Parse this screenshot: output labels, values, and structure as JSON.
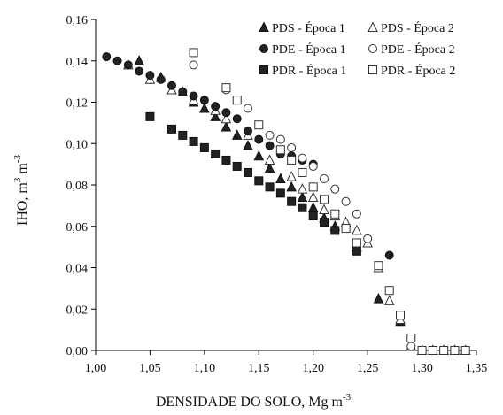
{
  "chart_data": {
    "type": "scatter",
    "title": "",
    "xlabel": "DENSIDADE DO SOLO, Mg m",
    "xlabel_sup": "-3",
    "ylabel": "IHO, m",
    "ylabel_sup1": "3",
    "ylabel_mid": " m",
    "ylabel_sup2": "-3",
    "xlim": [
      1.0,
      1.35
    ],
    "ylim": [
      0.0,
      0.16
    ],
    "xticks": [
      "1,00",
      "1,05",
      "1,10",
      "1,15",
      "1,20",
      "1,25",
      "1,30",
      "1,35"
    ],
    "yticks": [
      "0,00",
      "0,02",
      "0,04",
      "0,06",
      "0,08",
      "0,10",
      "0,12",
      "0,14",
      "0,16"
    ],
    "grid": false,
    "legend_position": "top-right",
    "series": [
      {
        "name": "PDS - Época 1",
        "marker": "triangle",
        "filled": true,
        "points": [
          [
            1.04,
            0.14
          ],
          [
            1.06,
            0.132
          ],
          [
            1.08,
            0.125
          ],
          [
            1.09,
            0.12
          ],
          [
            1.1,
            0.117
          ],
          [
            1.11,
            0.113
          ],
          [
            1.12,
            0.108
          ],
          [
            1.13,
            0.104
          ],
          [
            1.14,
            0.099
          ],
          [
            1.15,
            0.094
          ],
          [
            1.16,
            0.088
          ],
          [
            1.17,
            0.083
          ],
          [
            1.18,
            0.079
          ],
          [
            1.19,
            0.074
          ],
          [
            1.2,
            0.069
          ],
          [
            1.21,
            0.064
          ],
          [
            1.22,
            0.06
          ],
          [
            1.24,
            0.05
          ],
          [
            1.26,
            0.025
          ],
          [
            1.28,
            0.014
          ],
          [
            1.29,
            0.002
          ],
          [
            1.3,
            0.0
          ],
          [
            1.31,
            0.0
          ],
          [
            1.32,
            0.0
          ],
          [
            1.33,
            0.0
          ],
          [
            1.34,
            0.0
          ]
        ]
      },
      {
        "name": "PDS - Época 2",
        "marker": "triangle",
        "filled": false,
        "points": [
          [
            1.03,
            0.138
          ],
          [
            1.05,
            0.131
          ],
          [
            1.07,
            0.126
          ],
          [
            1.09,
            0.121
          ],
          [
            1.11,
            0.116
          ],
          [
            1.12,
            0.112
          ],
          [
            1.14,
            0.104
          ],
          [
            1.16,
            0.092
          ],
          [
            1.18,
            0.084
          ],
          [
            1.19,
            0.078
          ],
          [
            1.2,
            0.074
          ],
          [
            1.21,
            0.068
          ],
          [
            1.22,
            0.065
          ],
          [
            1.23,
            0.062
          ],
          [
            1.24,
            0.058
          ],
          [
            1.25,
            0.052
          ],
          [
            1.26,
            0.04
          ],
          [
            1.27,
            0.024
          ],
          [
            1.28,
            0.015
          ],
          [
            1.29,
            0.002
          ],
          [
            1.3,
            0.0
          ],
          [
            1.31,
            0.0
          ],
          [
            1.32,
            0.0
          ],
          [
            1.33,
            0.0
          ],
          [
            1.34,
            0.0
          ]
        ]
      },
      {
        "name": "PDE - Época 1",
        "marker": "circle",
        "filled": true,
        "points": [
          [
            1.01,
            0.142
          ],
          [
            1.02,
            0.14
          ],
          [
            1.03,
            0.138
          ],
          [
            1.04,
            0.135
          ],
          [
            1.05,
            0.133
          ],
          [
            1.06,
            0.131
          ],
          [
            1.07,
            0.128
          ],
          [
            1.08,
            0.125
          ],
          [
            1.09,
            0.123
          ],
          [
            1.1,
            0.121
          ],
          [
            1.11,
            0.118
          ],
          [
            1.12,
            0.115
          ],
          [
            1.13,
            0.112
          ],
          [
            1.14,
            0.106
          ],
          [
            1.15,
            0.102
          ],
          [
            1.16,
            0.099
          ],
          [
            1.17,
            0.095
          ],
          [
            1.18,
            0.094
          ],
          [
            1.19,
            0.092
          ],
          [
            1.2,
            0.09
          ],
          [
            1.27,
            0.046
          ]
        ]
      },
      {
        "name": "PDE - Época 2",
        "marker": "circle",
        "filled": false,
        "points": [
          [
            1.09,
            0.138
          ],
          [
            1.12,
            0.126
          ],
          [
            1.14,
            0.117
          ],
          [
            1.16,
            0.104
          ],
          [
            1.17,
            0.102
          ],
          [
            1.18,
            0.098
          ],
          [
            1.19,
            0.093
          ],
          [
            1.2,
            0.089
          ],
          [
            1.21,
            0.083
          ],
          [
            1.22,
            0.078
          ],
          [
            1.23,
            0.072
          ],
          [
            1.24,
            0.066
          ],
          [
            1.25,
            0.054
          ],
          [
            1.29,
            0.002
          ]
        ]
      },
      {
        "name": "PDR - Época 1",
        "marker": "square",
        "filled": true,
        "points": [
          [
            1.05,
            0.113
          ],
          [
            1.07,
            0.107
          ],
          [
            1.08,
            0.104
          ],
          [
            1.09,
            0.101
          ],
          [
            1.1,
            0.098
          ],
          [
            1.11,
            0.095
          ],
          [
            1.12,
            0.092
          ],
          [
            1.13,
            0.089
          ],
          [
            1.14,
            0.086
          ],
          [
            1.15,
            0.082
          ],
          [
            1.16,
            0.079
          ],
          [
            1.17,
            0.076
          ],
          [
            1.18,
            0.072
          ],
          [
            1.19,
            0.069
          ],
          [
            1.2,
            0.065
          ],
          [
            1.21,
            0.062
          ],
          [
            1.22,
            0.058
          ],
          [
            1.24,
            0.048
          ]
        ]
      },
      {
        "name": "PDR - Época 2",
        "marker": "square",
        "filled": false,
        "points": [
          [
            1.09,
            0.144
          ],
          [
            1.12,
            0.127
          ],
          [
            1.13,
            0.121
          ],
          [
            1.15,
            0.109
          ],
          [
            1.17,
            0.097
          ],
          [
            1.18,
            0.092
          ],
          [
            1.19,
            0.086
          ],
          [
            1.2,
            0.079
          ],
          [
            1.21,
            0.073
          ],
          [
            1.22,
            0.066
          ],
          [
            1.23,
            0.059
          ],
          [
            1.24,
            0.052
          ],
          [
            1.26,
            0.041
          ],
          [
            1.27,
            0.029
          ],
          [
            1.28,
            0.017
          ],
          [
            1.29,
            0.006
          ],
          [
            1.3,
            0.0
          ],
          [
            1.31,
            0.0
          ],
          [
            1.32,
            0.0
          ],
          [
            1.33,
            0.0
          ],
          [
            1.34,
            0.0
          ]
        ]
      }
    ]
  }
}
